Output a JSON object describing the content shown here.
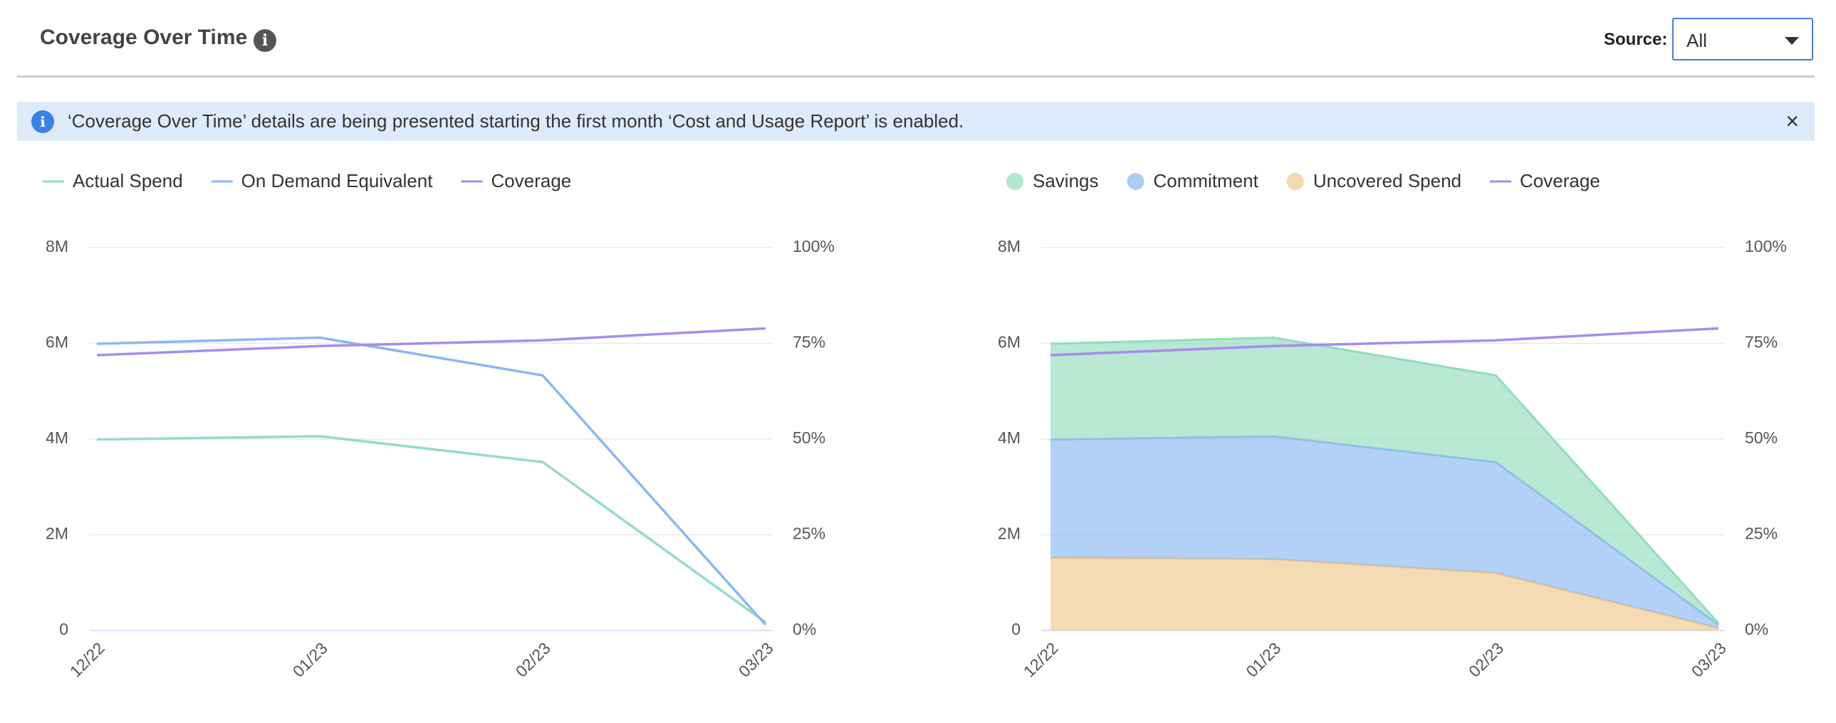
{
  "header": {
    "title": "Coverage Over Time",
    "source_label": "Source:",
    "source_value": "All"
  },
  "banner": {
    "text": "‘Coverage Over Time’ details are being presented starting the first month ‘Cost and Usage Report’ is enabled."
  },
  "chart_data": [
    {
      "type": "line",
      "categories": [
        "12/22",
        "01/23",
        "02/23",
        "03/23"
      ],
      "series": [
        {
          "name": "Actual Spend",
          "color": "#93dec1",
          "values": [
            3990000,
            4060000,
            3520000,
            170000
          ]
        },
        {
          "name": "On Demand Equivalent",
          "color": "#8ab8f2",
          "values": [
            5990000,
            6120000,
            5330000,
            120000
          ]
        },
        {
          "name": "Coverage",
          "color": "#a98af0",
          "axis": "y2",
          "values": [
            71.9,
            74.3,
            75.8,
            78.9
          ]
        }
      ],
      "ylim": [
        0,
        8000000
      ],
      "yticks": [
        0,
        {
          "value": 2000000,
          "label": "2M"
        },
        {
          "value": 4000000,
          "label": "4M"
        },
        {
          "value": 6000000,
          "label": "6M"
        },
        {
          "value": 8000000,
          "label": "8M"
        }
      ],
      "y2lim": [
        0,
        100
      ],
      "y2ticks": [
        {
          "value": 0,
          "label": "0%"
        },
        {
          "value": 25,
          "label": "25%"
        },
        {
          "value": 50,
          "label": "50%"
        },
        {
          "value": 75,
          "label": "75%"
        },
        {
          "value": 100,
          "label": "100%"
        }
      ],
      "grid": true
    },
    {
      "type": "area",
      "stacked": true,
      "categories": [
        "12/22",
        "01/23",
        "02/23",
        "03/23"
      ],
      "series": [
        {
          "name": "Savings",
          "color": "#93dcbe",
          "values": [
            2000000,
            2060000,
            1810000,
            30000
          ]
        },
        {
          "name": "Commitment",
          "color": "#8ab8f2",
          "values": [
            2470000,
            2570000,
            2320000,
            70000
          ]
        },
        {
          "name": "Uncovered Spend",
          "color": "#f0c88a",
          "values": [
            1520000,
            1490000,
            1200000,
            50000
          ]
        },
        {
          "name": "Coverage",
          "color": "#a98af0",
          "type": "line",
          "axis": "y2",
          "values": [
            71.9,
            74.3,
            75.8,
            78.9
          ]
        }
      ],
      "ylim": [
        0,
        8000000
      ],
      "yticks": [
        0,
        {
          "value": 2000000,
          "label": "2M"
        },
        {
          "value": 4000000,
          "label": "4M"
        },
        {
          "value": 6000000,
          "label": "6M"
        },
        {
          "value": 8000000,
          "label": "8M"
        }
      ],
      "y2lim": [
        0,
        100
      ],
      "y2ticks": [
        {
          "value": 0,
          "label": "0%"
        },
        {
          "value": 25,
          "label": "25%"
        },
        {
          "value": 50,
          "label": "50%"
        },
        {
          "value": 75,
          "label": "75%"
        },
        {
          "value": 100,
          "label": "100%"
        }
      ],
      "grid": true
    }
  ]
}
